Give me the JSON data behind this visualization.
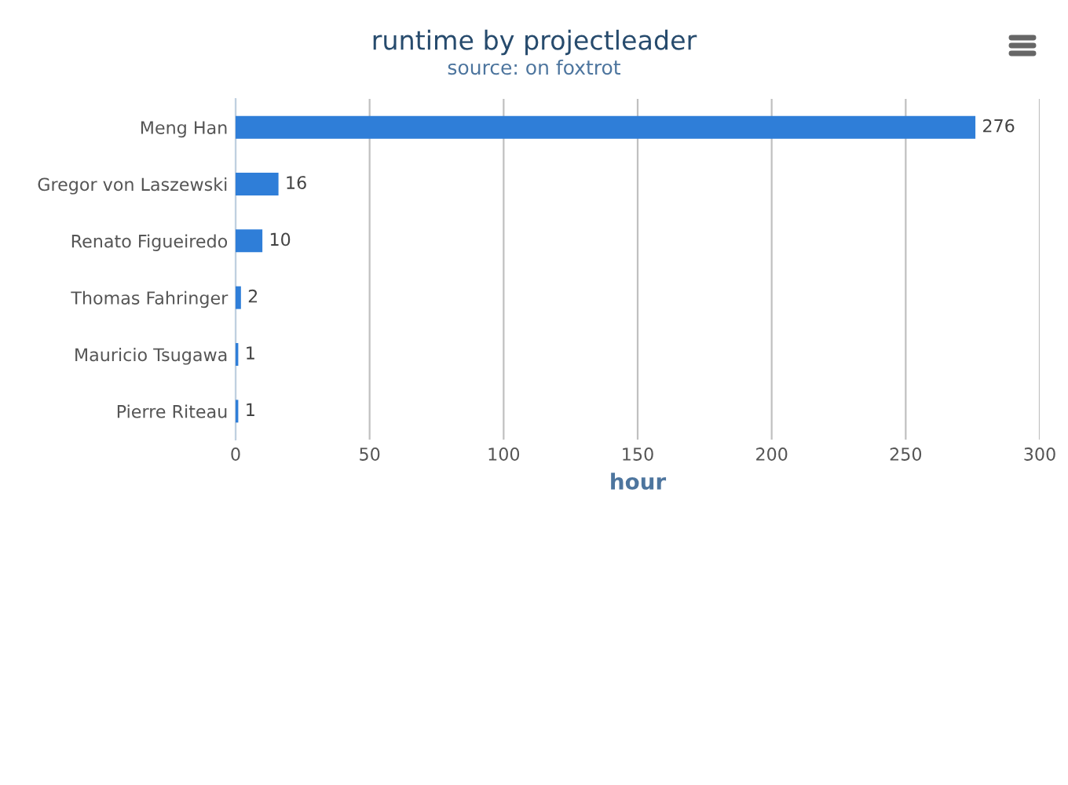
{
  "chart_data": {
    "type": "bar",
    "orientation": "horizontal",
    "title": "runtime by projectleader",
    "subtitle": "source: on foxtrot",
    "categories": [
      "Meng Han",
      "Gregor von Laszewski",
      "Renato Figueiredo",
      "Thomas Fahringer",
      "Mauricio Tsugawa",
      "Pierre Riteau"
    ],
    "values": [
      276,
      16,
      10,
      2,
      1,
      1
    ],
    "color": "#2f7ed8",
    "xlabel": "hour",
    "xlim": [
      0,
      300
    ],
    "xticks": [
      0,
      50,
      100,
      150,
      200,
      250,
      300
    ],
    "grid": "x",
    "data_labels": true
  }
}
